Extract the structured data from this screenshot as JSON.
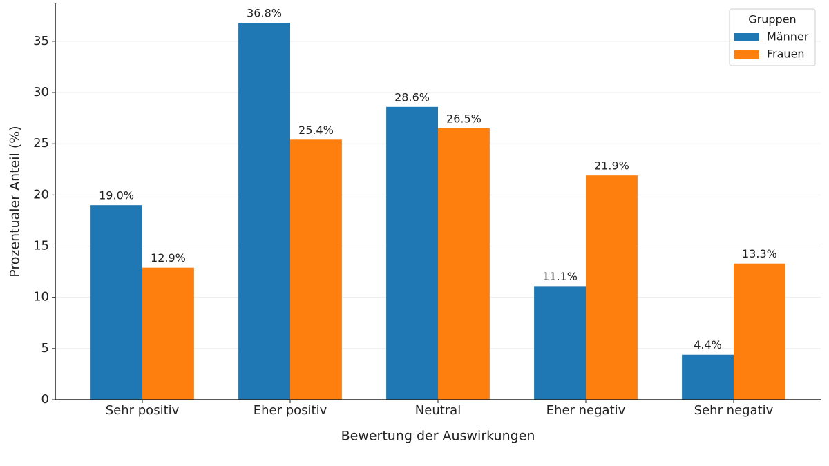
{
  "chart_data": {
    "type": "bar",
    "x_label": "Bewertung der Auswirkungen",
    "y_label": "Prozentualer Anteil (%)",
    "categories": [
      "Sehr positiv",
      "Eher positiv",
      "Neutral",
      "Eher negativ",
      "Sehr negativ"
    ],
    "series": [
      {
        "name": "Männer",
        "color": "#1f77b4",
        "values": [
          19.0,
          36.8,
          28.6,
          11.1,
          4.4
        ],
        "value_labels": [
          "19.0%",
          "36.8%",
          "28.6%",
          "11.1%",
          "4.4%"
        ]
      },
      {
        "name": "Frauen",
        "color": "#ff7f0e",
        "values": [
          12.9,
          25.4,
          26.5,
          21.9,
          13.3
        ],
        "value_labels": [
          "12.9%",
          "25.4%",
          "26.5%",
          "21.9%",
          "13.3%"
        ]
      }
    ],
    "ylim": [
      0,
      38.7
    ],
    "yticks": [
      0,
      5,
      10,
      15,
      20,
      25,
      30,
      35
    ],
    "grid": true,
    "legend_title": "Gruppen",
    "legend_position": "upper right"
  }
}
